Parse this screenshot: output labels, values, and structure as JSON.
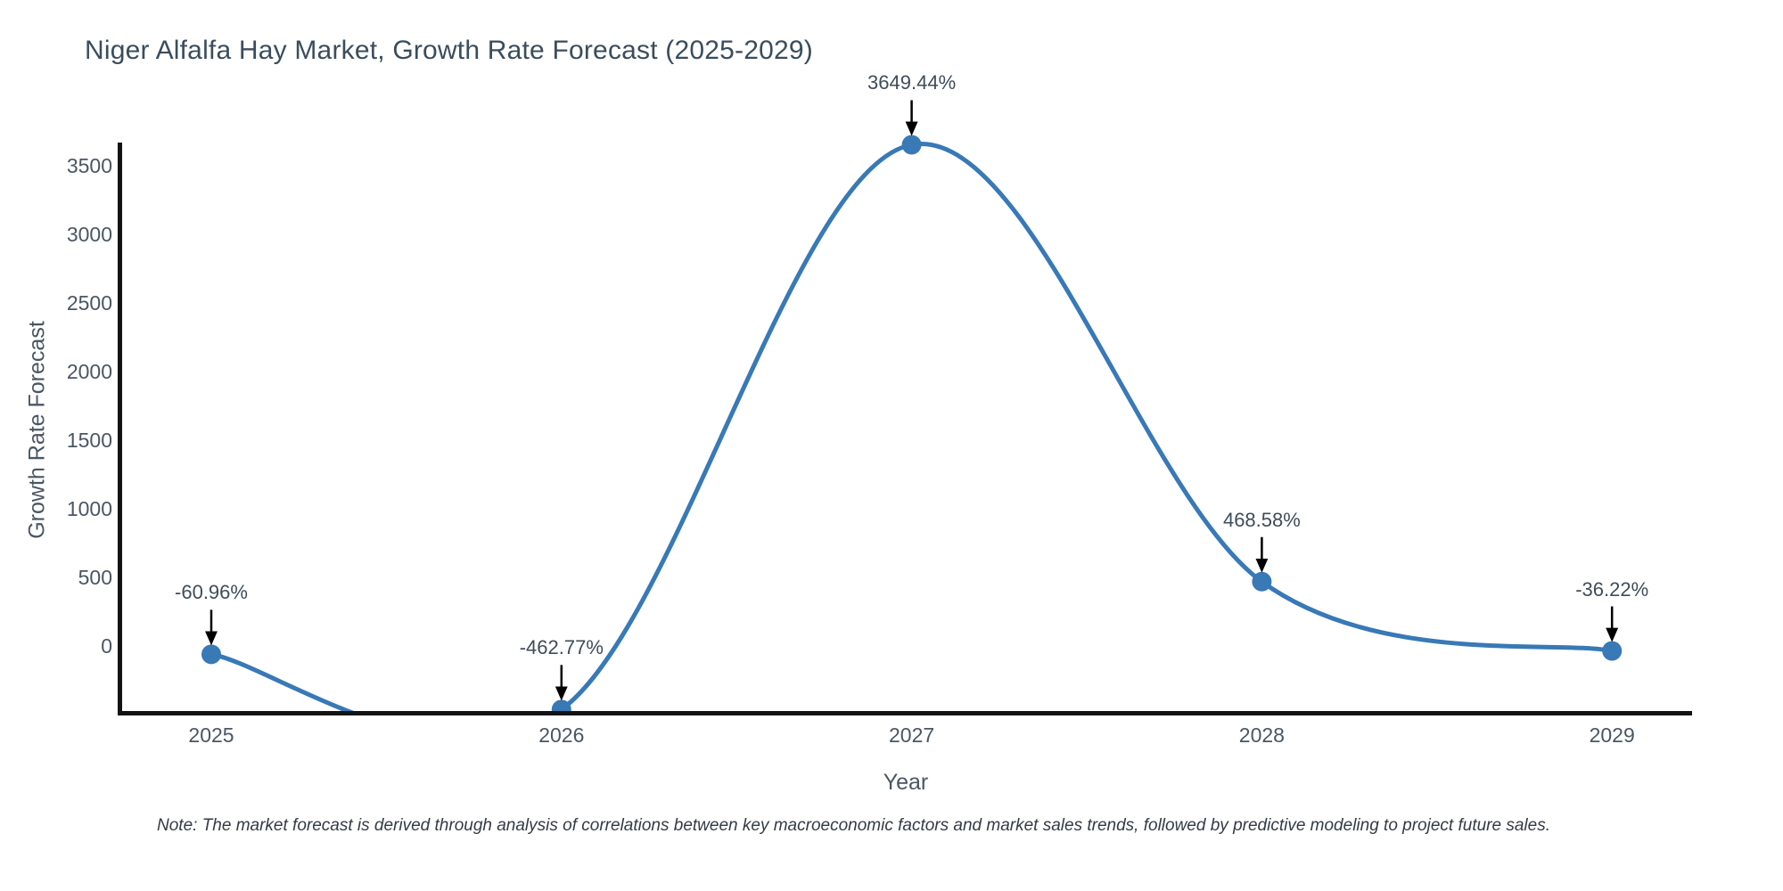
{
  "title": "Niger Alfalfa Hay Market, Growth Rate Forecast (2025-2029)",
  "note": "Note: The market forecast is derived through analysis of correlations between key macroeconomic factors and market sales trends, followed by predictive modeling to project future sales.",
  "chart_data": {
    "type": "line",
    "line_shape": "spline",
    "markers": true,
    "title": "Niger Alfalfa Hay Market, Growth Rate Forecast (2025-2029)",
    "xlabel": "Year",
    "ylabel": "Growth Rate Forecast",
    "x": [
      2025,
      2026,
      2027,
      2028,
      2029
    ],
    "values": [
      -60.96,
      -462.77,
      3649.44,
      468.58,
      -36.22
    ],
    "point_labels": [
      "-60.96%",
      "-462.77%",
      "3649.44%",
      "468.58%",
      "-36.22%"
    ],
    "yticks": [
      0,
      500,
      1000,
      1500,
      2000,
      2500,
      3000,
      3500
    ],
    "ylim": [
      -490,
      3650
    ],
    "grid": false,
    "legend": false,
    "annotations_arrow": "down",
    "colors": {
      "line": "#3879b6",
      "marker": "#3879b6",
      "arrow": "#000000",
      "axis_line": "#131313",
      "title": "#3b4d5c",
      "axis_text": "#4a5663",
      "annotation_text": "#3f4c5a",
      "note_text": "#333b44",
      "background": "#ffffff"
    }
  }
}
